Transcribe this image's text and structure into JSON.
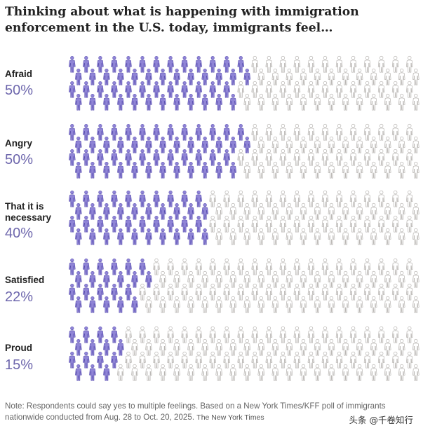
{
  "title": "Thinking about what is happening with immigration enforcement in the U.S. today, immigrants feel…",
  "chart_data": {
    "type": "pictogram",
    "title": "Thinking about what is happening with immigration enforcement in the U.S. today, immigrants feel…",
    "icons_per_row": 100,
    "categories": [
      "Afraid",
      "Angry",
      "That it is necessary",
      "Satisfied",
      "Proud"
    ],
    "values": [
      50,
      50,
      40,
      22,
      15
    ],
    "value_labels": [
      "50%",
      "50%",
      "40%",
      "22%",
      "15%"
    ],
    "unit": "percent",
    "xlim": [
      0,
      100
    ]
  },
  "rows": [
    {
      "label": "Afraid",
      "pct": "50%"
    },
    {
      "label": "Angry",
      "pct": "50%"
    },
    {
      "label": "That it is necessary",
      "pct": "40%"
    },
    {
      "label": "Satisfied",
      "pct": "22%"
    },
    {
      "label": "Proud",
      "pct": "15%"
    }
  ],
  "note": "Note: Respondents could say yes to multiple feelings.  Based on a New York Times/KFF poll of immigrants nationwide conducted from Aug. 28 to Oct. 20, 2025.",
  "source": "The New York Times",
  "watermark": "头条 @千卷知行",
  "colors": {
    "filled": "#8f84d6",
    "filled_stroke": "#5a4fb0",
    "empty_fill": "#ffffff",
    "empty_stroke": "#b9b6b3",
    "pct_text": "#6e67ad"
  },
  "icons": {
    "person": "person-icon"
  }
}
